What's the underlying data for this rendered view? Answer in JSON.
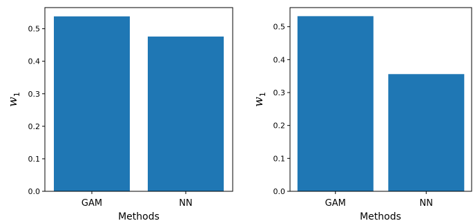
{
  "chart_data": [
    {
      "type": "bar",
      "categories": [
        "GAM",
        "NN"
      ],
      "values": [
        0.538,
        0.476
      ],
      "xlabel": "Methods",
      "ylabel": {
        "main": "w",
        "sub": "1"
      },
      "ylim": [
        0,
        0.565
      ],
      "yticks": [
        "0.0",
        "0.1",
        "0.2",
        "0.3",
        "0.4",
        "0.5"
      ],
      "grid": false,
      "color": "#1f77b4"
    },
    {
      "type": "bar",
      "categories": [
        "GAM",
        "NN"
      ],
      "values": [
        0.532,
        0.356
      ],
      "xlabel": "Methods",
      "ylabel": {
        "main": "w",
        "sub": "1"
      },
      "ylim": [
        0,
        0.558
      ],
      "yticks": [
        "0.0",
        "0.1",
        "0.2",
        "0.3",
        "0.4",
        "0.5"
      ],
      "grid": false,
      "color": "#1f77b4"
    }
  ]
}
